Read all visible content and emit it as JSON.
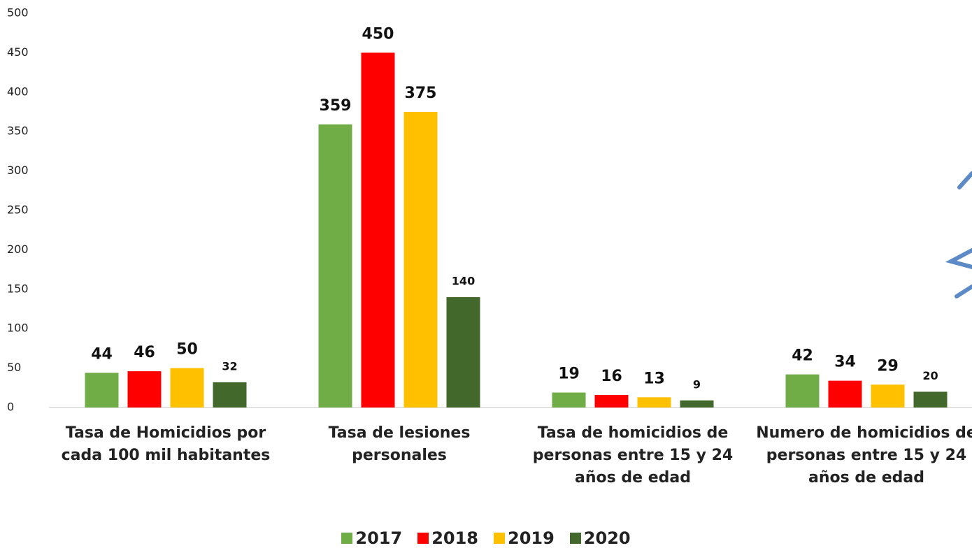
{
  "chart_data": {
    "type": "bar",
    "categories": [
      "Tasa de Homicidios por cada 100 mil habitantes",
      "Tasa de lesiones personales",
      "Tasa de homicidios de personas entre 15 y 24 años de edad",
      "Numero de homicidios de personas entre 15 y 24 años de edad"
    ],
    "series": [
      {
        "name": "2017",
        "color": "#70ad47",
        "values": [
          44,
          359,
          19,
          42
        ]
      },
      {
        "name": "2018",
        "color": "#ff0000",
        "values": [
          46,
          450,
          16,
          34
        ]
      },
      {
        "name": "2019",
        "color": "#ffc000",
        "values": [
          50,
          375,
          13,
          29
        ]
      },
      {
        "name": "2020",
        "color": "#43682b",
        "values": [
          32,
          140,
          9,
          20
        ]
      }
    ],
    "ylim": [
      0,
      500
    ],
    "yticks": [
      0,
      50,
      100,
      150,
      200,
      250,
      300,
      350,
      400,
      450,
      500
    ],
    "grid": false
  }
}
